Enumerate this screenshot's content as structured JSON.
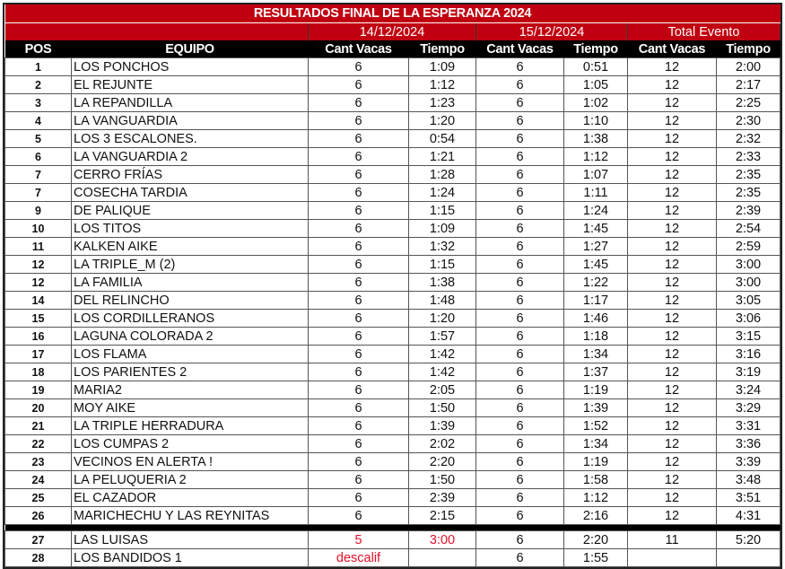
{
  "title": "RESULTADOS FINAL DE LA ESPERANZA 2024",
  "groups": [
    "14/12/2024",
    "15/12/2024",
    "Total Evento"
  ],
  "headers": {
    "pos": "POS",
    "team": "EQUIPO",
    "cant": "Cant Vacas",
    "time": "Tiempo"
  },
  "colors": {
    "header_red": "#c00010",
    "header_black": "#000000",
    "alert_red": "#e8102a"
  },
  "rows": [
    [
      "1",
      "LOS PONCHOS",
      "6",
      "1:09",
      "6",
      "0:51",
      "12",
      "2:00"
    ],
    [
      "2",
      "EL REJUNTE",
      "6",
      "1:12",
      "6",
      "1:05",
      "12",
      "2:17"
    ],
    [
      "3",
      "LA REPANDILLA",
      "6",
      "1:23",
      "6",
      "1:02",
      "12",
      "2:25"
    ],
    [
      "4",
      "LA VANGUARDIA",
      "6",
      "1:20",
      "6",
      "1:10",
      "12",
      "2:30"
    ],
    [
      "5",
      "LOS 3 ESCALONES.",
      "6",
      "0:54",
      "6",
      "1:38",
      "12",
      "2:32"
    ],
    [
      "6",
      "LA VANGUARDIA 2",
      "6",
      "1:21",
      "6",
      "1:12",
      "12",
      "2:33"
    ],
    [
      "7",
      "CERRO FRÍAS",
      "6",
      "1:28",
      "6",
      "1:07",
      "12",
      "2:35"
    ],
    [
      "7",
      "COSECHA TARDIA",
      "6",
      "1:24",
      "6",
      "1:11",
      "12",
      "2:35"
    ],
    [
      "9",
      "DE PALIQUE",
      "6",
      "1:15",
      "6",
      "1:24",
      "12",
      "2:39"
    ],
    [
      "10",
      "LOS TITOS",
      "6",
      "1:09",
      "6",
      "1:45",
      "12",
      "2:54"
    ],
    [
      "11",
      "KALKEN AIKE",
      "6",
      "1:32",
      "6",
      "1:27",
      "12",
      "2:59"
    ],
    [
      "12",
      "LA TRIPLE_M (2)",
      "6",
      "1:15",
      "6",
      "1:45",
      "12",
      "3:00"
    ],
    [
      "12",
      "LA FAMILIA",
      "6",
      "1:38",
      "6",
      "1:22",
      "12",
      "3:00"
    ],
    [
      "14",
      "DEL RELINCHO",
      "6",
      "1:48",
      "6",
      "1:17",
      "12",
      "3:05"
    ],
    [
      "15",
      "LOS CORDILLERANOS",
      "6",
      "1:20",
      "6",
      "1:46",
      "12",
      "3:06"
    ],
    [
      "16",
      "LAGUNA COLORADA 2",
      "6",
      "1:57",
      "6",
      "1:18",
      "12",
      "3:15"
    ],
    [
      "17",
      "LOS FLAMA",
      "6",
      "1:42",
      "6",
      "1:34",
      "12",
      "3:16"
    ],
    [
      "18",
      "LOS PARIENTES 2",
      "6",
      "1:42",
      "6",
      "1:37",
      "12",
      "3:19"
    ],
    [
      "19",
      "MARIA2",
      "6",
      "2:05",
      "6",
      "1:19",
      "12",
      "3:24"
    ],
    [
      "20",
      "MOY AIKE",
      "6",
      "1:50",
      "6",
      "1:39",
      "12",
      "3:29"
    ],
    [
      "21",
      "LA TRIPLE HERRADURA",
      "6",
      "1:39",
      "6",
      "1:52",
      "12",
      "3:31"
    ],
    [
      "22",
      "LOS CUMPAS 2",
      "6",
      "2:02",
      "6",
      "1:34",
      "12",
      "3:36"
    ],
    [
      "23",
      "VECINOS EN ALERTA !",
      "6",
      "2:20",
      "6",
      "1:19",
      "12",
      "3:39"
    ],
    [
      "24",
      "LA PELUQUERIA 2",
      "6",
      "1:50",
      "6",
      "1:58",
      "12",
      "3:48"
    ],
    [
      "25",
      "EL CAZADOR",
      "6",
      "2:39",
      "6",
      "1:12",
      "12",
      "3:51"
    ],
    [
      "26",
      "MARICHECHU Y LAS REYNITAS",
      "6",
      "2:15",
      "6",
      "2:16",
      "12",
      "4:31"
    ]
  ],
  "extra_rows": [
    {
      "cells": [
        "27",
        "LAS LUISAS",
        "5",
        "3:00",
        "6",
        "2:20",
        "11",
        "5:20"
      ],
      "red": [
        2,
        3
      ]
    },
    {
      "cells": [
        "28",
        "LOS BANDIDOS 1",
        "descalif",
        "",
        "6",
        "1:55",
        "",
        ""
      ],
      "red": [
        2
      ]
    }
  ]
}
